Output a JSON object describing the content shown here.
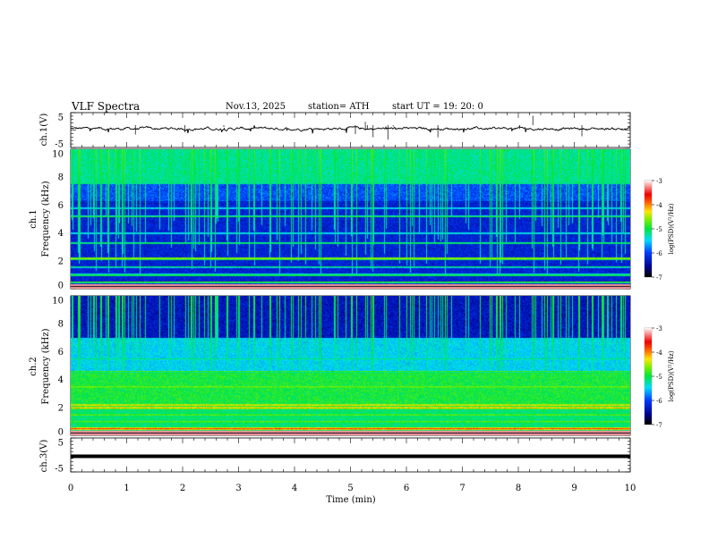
{
  "header": {
    "title": "VLF  Spectra",
    "date": "Nov.13, 2025",
    "station": "station= ATH",
    "start": "start  UT  =    19: 20: 0"
  },
  "chart_data": [
    {
      "type": "line",
      "name": "ch1-waveform",
      "ylabel": "ch.1(V)",
      "ylim": [
        -5,
        5
      ],
      "yticks": [
        "5",
        "-5"
      ],
      "xlim": [
        0,
        10
      ],
      "description_level": 0.5
    },
    {
      "type": "heatmap",
      "name": "ch1-spectrogram",
      "ylabel": "ch.1\nFrequency  (kHz)",
      "ylabel_ch": "ch.1",
      "ylabel_freq": "Frequency  (kHz)",
      "ylim": [
        0,
        10
      ],
      "yticks": [
        "0",
        "2",
        "4",
        "6",
        "8",
        "10"
      ],
      "xlim": [
        0,
        10
      ],
      "colorbar": {
        "label": "log(PSD)(V²/Hz)",
        "range": [
          -7,
          -3
        ],
        "ticks": [
          "-3",
          "-4",
          "-5",
          "-6",
          "-7"
        ]
      },
      "bands_khz": [
        0.5,
        1.0,
        2.2,
        3.3,
        4.0,
        5.2,
        5.8
      ]
    },
    {
      "type": "heatmap",
      "name": "ch2-spectrogram",
      "ylabel_ch": "ch.2",
      "ylabel_freq": "Frequency  (kHz)",
      "ylim": [
        0,
        10
      ],
      "yticks": [
        "0",
        "2",
        "4",
        "6",
        "8",
        "10"
      ],
      "xlim": [
        0,
        10
      ],
      "colorbar": {
        "label": "log(PSD)(V²/Hz)",
        "range": [
          -7,
          -3
        ],
        "ticks": [
          "-3",
          "-4",
          "-5",
          "-6",
          "-7"
        ]
      },
      "bands_khz": [
        0.5,
        1.0,
        2.0,
        2.2,
        3.5,
        4.6,
        5.5
      ]
    },
    {
      "type": "line",
      "name": "ch3-waveform",
      "ylabel": "ch.3(V)",
      "ylim": [
        -5,
        5
      ],
      "yticks": [
        "5",
        "-5"
      ],
      "xlim": [
        0,
        10
      ],
      "level": 0
    }
  ],
  "xaxis": {
    "label": "Time  (min)",
    "ticks": [
      "0",
      "1",
      "2",
      "3",
      "4",
      "5",
      "6",
      "7",
      "8",
      "9",
      "10"
    ]
  }
}
